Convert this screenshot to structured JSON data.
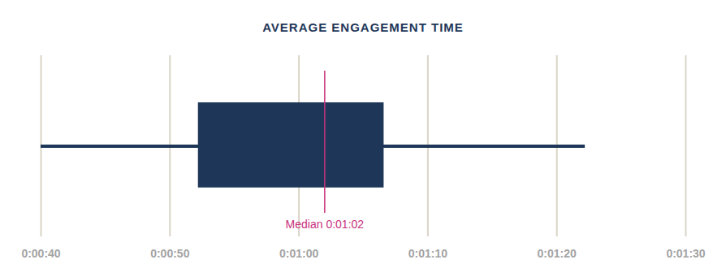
{
  "chart_data": {
    "type": "box",
    "title": "AVERAGE ENGAGEMENT TIME",
    "box": {
      "min": 40,
      "q1": 52.2,
      "median": 62,
      "q3": 66.6,
      "max": 82.2
    },
    "median_label": "Median 0:01:02",
    "color": "#1e3759",
    "median_color": "#c8317b",
    "orientation": "horizontal",
    "grid": true,
    "xlim": [
      40,
      90
    ],
    "xticks": [
      {
        "value": 40,
        "label": "0:00:40"
      },
      {
        "value": 50,
        "label": "0:00:50"
      },
      {
        "value": 60,
        "label": "0:01:00"
      },
      {
        "value": 70,
        "label": "0:01:10"
      },
      {
        "value": 80,
        "label": "0:01:20"
      },
      {
        "value": 90,
        "label": "0:01:30"
      }
    ]
  }
}
